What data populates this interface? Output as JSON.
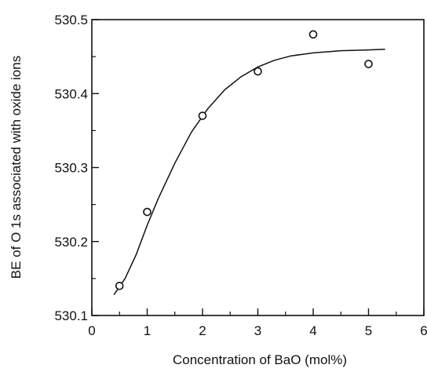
{
  "chart_data": {
    "type": "scatter",
    "title": "",
    "xlabel": "Concentration of BaO (mol%)",
    "ylabel": "BE of O 1s associated with oxide ions",
    "xlim": [
      0,
      6
    ],
    "ylim": [
      530.1,
      530.5
    ],
    "xticks": [
      "0",
      "1",
      "2",
      "3",
      "4",
      "5",
      "6"
    ],
    "yticks": [
      "530.1",
      "530.2",
      "530.3",
      "530.4",
      "530.5"
    ],
    "grid": false,
    "legend": "none",
    "series": [
      {
        "kind": "points",
        "marker": "open-circle",
        "x": [
          0.5,
          1.0,
          2.0,
          3.0,
          4.0,
          5.0
        ],
        "y": [
          530.14,
          530.24,
          530.37,
          530.43,
          530.48,
          530.44
        ]
      },
      {
        "kind": "fitted-curve",
        "x": [
          0.4,
          0.6,
          0.8,
          1.0,
          1.2,
          1.5,
          1.8,
          2.1,
          2.4,
          2.7,
          3.0,
          3.3,
          3.6,
          4.0,
          4.5,
          5.0,
          5.3
        ],
        "y": [
          530.128,
          530.15,
          530.182,
          530.222,
          530.258,
          530.306,
          530.348,
          530.38,
          530.405,
          530.423,
          530.436,
          530.445,
          530.451,
          530.455,
          530.458,
          530.459,
          530.46
        ]
      }
    ],
    "colors": {
      "ink": "#111111",
      "background": "#ffffff"
    }
  }
}
